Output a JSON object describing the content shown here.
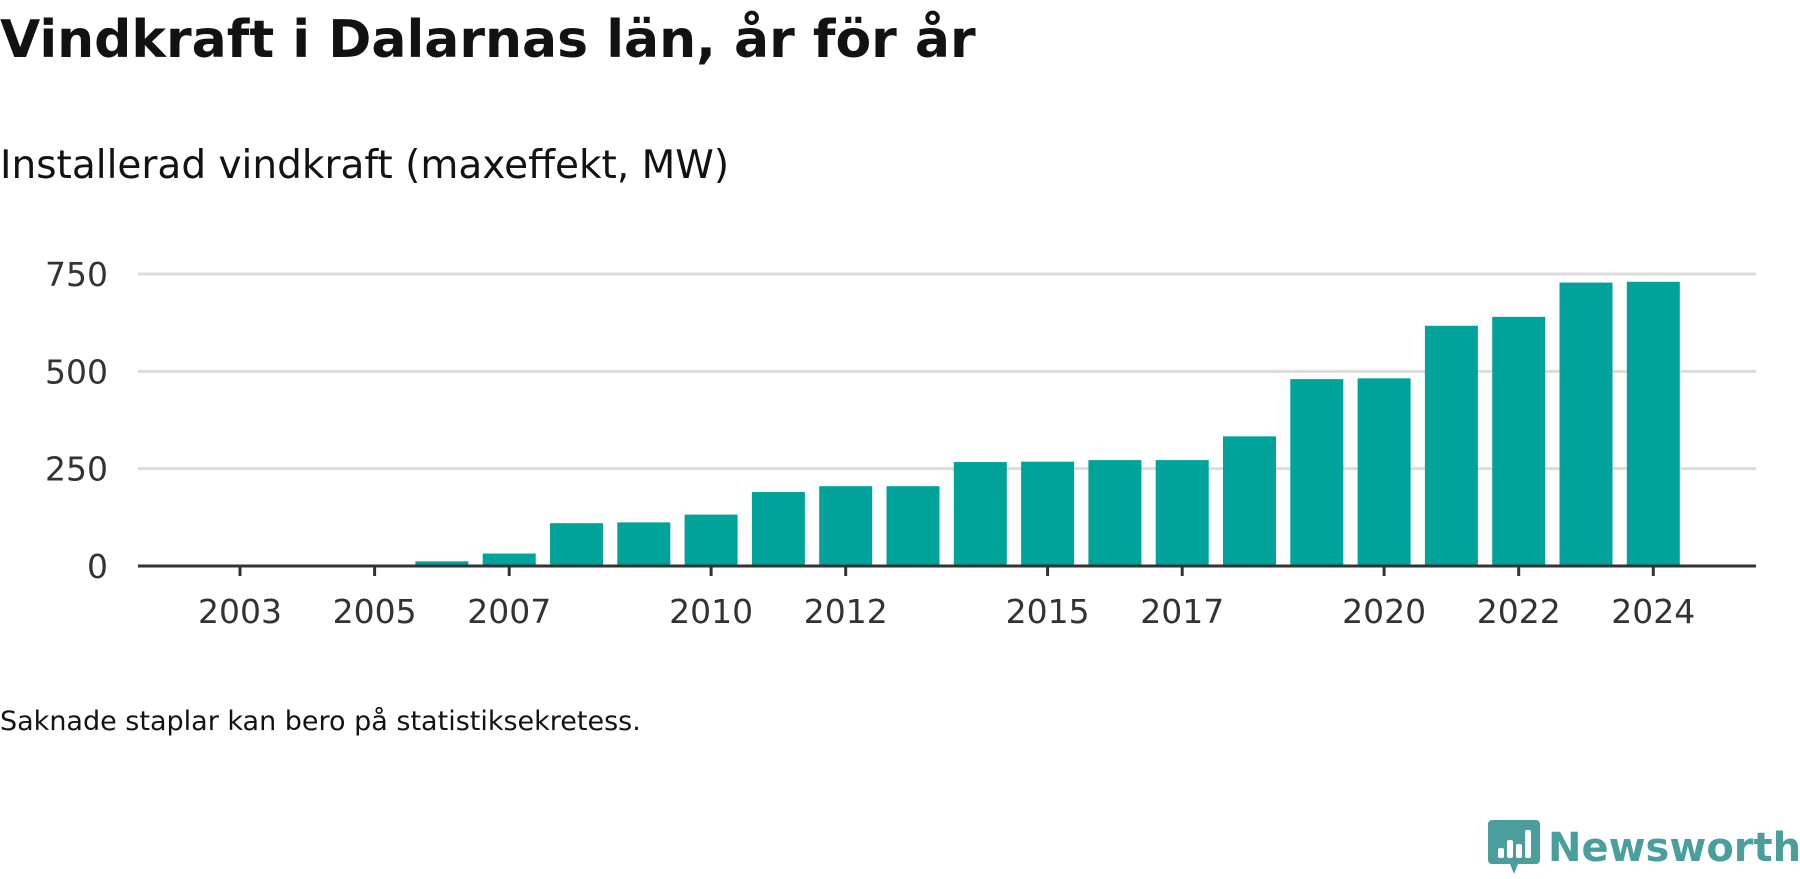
{
  "title": "Vindkraft i Dalarnas län, år för år",
  "subtitle": "Installerad vindkraft (maxeffekt, MW)",
  "footnote": "Saknade staplar kan bero på statistiksekretess.",
  "brand": {
    "name": "Newsworthy",
    "color": "#4a9f9c"
  },
  "chart_data": {
    "type": "bar",
    "title": "Installerad vindkraft (maxeffekt, MW)",
    "xlabel": "",
    "ylabel": "",
    "categories": [
      "2003",
      "2004",
      "2005",
      "2006",
      "2007",
      "2008",
      "2009",
      "2010",
      "2011",
      "2012",
      "2013",
      "2014",
      "2015",
      "2016",
      "2017",
      "2018",
      "2019",
      "2020",
      "2021",
      "2022",
      "2023",
      "2024"
    ],
    "values": [
      0,
      0,
      0,
      12,
      32,
      110,
      112,
      132,
      190,
      205,
      205,
      267,
      268,
      272,
      272,
      333,
      480,
      482,
      617,
      640,
      728,
      730
    ],
    "x_tick_labels": [
      "2003",
      "2005",
      "2007",
      "2010",
      "2012",
      "2015",
      "2017",
      "2020",
      "2022",
      "2024"
    ],
    "y_ticks": [
      0,
      250,
      500,
      750
    ],
    "ylim": [
      0,
      750
    ],
    "grid": true,
    "legend": "none",
    "bar_color": "#00a39a",
    "grid_color": "#dcdcdc",
    "axis_color": "#333333"
  }
}
